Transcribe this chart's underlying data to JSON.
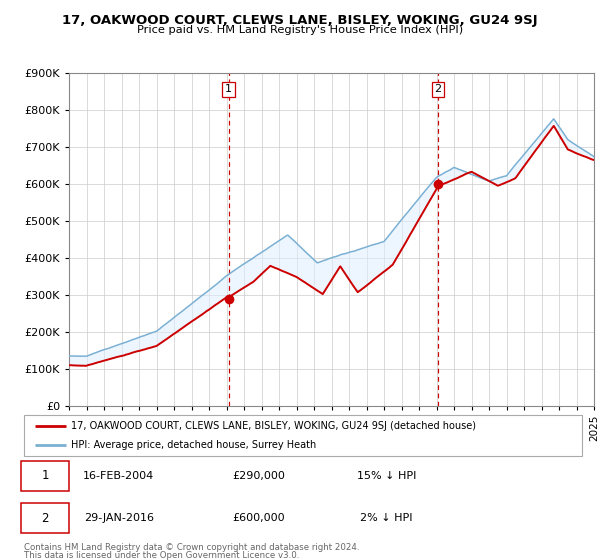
{
  "title": "17, OAKWOOD COURT, CLEWS LANE, BISLEY, WOKING, GU24 9SJ",
  "subtitle": "Price paid vs. HM Land Registry's House Price Index (HPI)",
  "legend_label_red": "17, OAKWOOD COURT, CLEWS LANE, BISLEY, WOKING, GU24 9SJ (detached house)",
  "legend_label_blue": "HPI: Average price, detached house, Surrey Heath",
  "annotation1_label": "1",
  "annotation1_date": "16-FEB-2004",
  "annotation1_price": "£290,000",
  "annotation1_hpi": "15% ↓ HPI",
  "annotation2_label": "2",
  "annotation2_date": "29-JAN-2016",
  "annotation2_price": "£600,000",
  "annotation2_hpi": "2% ↓ HPI",
  "footer_line1": "Contains HM Land Registry data © Crown copyright and database right 2024.",
  "footer_line2": "This data is licensed under the Open Government Licence v3.0.",
  "red_color": "#cc0000",
  "blue_color": "#7ab0d4",
  "shaded_color": "#ddeeff",
  "grid_color": "#cccccc",
  "vline_color": "#cc0000",
  "point1_x": 2004.12,
  "point1_y": 290000,
  "point2_x": 2016.08,
  "point2_y": 600000,
  "ylim": [
    0,
    900000
  ],
  "xlim_start": 1995,
  "xlim_end": 2025
}
